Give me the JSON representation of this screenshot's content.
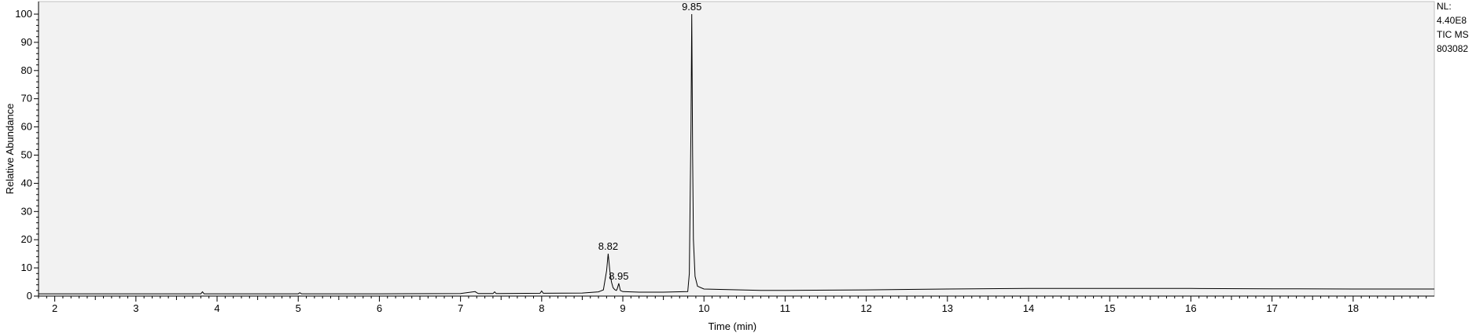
{
  "chart_data": {
    "type": "line",
    "xlabel": "Time (min)",
    "ylabel": "Relative Abundance",
    "xlim": [
      1.8,
      19.0
    ],
    "ylim": [
      0,
      100
    ],
    "x_ticks": [
      2,
      3,
      4,
      5,
      6,
      7,
      8,
      9,
      10,
      11,
      12,
      13,
      14,
      15,
      16,
      17,
      18
    ],
    "y_ticks": [
      0,
      10,
      20,
      30,
      40,
      50,
      60,
      70,
      80,
      90,
      100
    ],
    "side_info": [
      "NL:",
      "4.40E8",
      "TIC  MS",
      "803082"
    ],
    "peak_labels": [
      {
        "x": 8.82,
        "y": 15,
        "text": "8.82"
      },
      {
        "x": 8.95,
        "y": 4.5,
        "text": "8.95"
      },
      {
        "x": 9.85,
        "y": 100,
        "text": "9.85"
      }
    ],
    "series": [
      {
        "x": [
          1.8,
          3.0,
          3.8,
          3.82,
          3.84,
          5.0,
          5.02,
          5.04,
          6.0,
          7.0,
          7.18,
          7.2,
          7.22,
          7.4,
          7.42,
          7.44,
          7.98,
          8.0,
          8.02,
          8.5,
          8.7,
          8.76,
          8.8,
          8.82,
          8.84,
          8.86,
          8.88,
          8.9,
          8.92,
          8.93,
          8.95,
          8.97,
          9.0,
          9.2,
          9.5,
          9.8,
          9.82,
          9.84,
          9.85,
          9.86,
          9.87,
          9.89,
          9.92,
          10.0,
          10.3,
          10.7,
          11.0,
          12.0,
          13.0,
          14.0,
          15.0,
          16.0,
          17.0,
          18.0,
          19.0
        ],
        "values": [
          0.8,
          0.8,
          0.8,
          1.5,
          0.8,
          0.8,
          1.2,
          0.8,
          0.8,
          0.9,
          1.6,
          1.2,
          0.9,
          0.9,
          1.5,
          0.9,
          1.0,
          1.8,
          1.0,
          1.1,
          1.5,
          2.2,
          9.0,
          15.0,
          9.0,
          5.0,
          3.0,
          2.3,
          2.0,
          2.5,
          4.5,
          2.0,
          1.6,
          1.4,
          1.4,
          1.6,
          8.0,
          60.0,
          100.0,
          50.0,
          20.0,
          7.0,
          3.5,
          2.5,
          2.3,
          2.0,
          2.0,
          2.2,
          2.5,
          2.7,
          2.7,
          2.7,
          2.6,
          2.5,
          2.5
        ]
      }
    ]
  },
  "colors": {
    "trace": "#000000",
    "plot_bg": "#f2f2f2",
    "axis": "#000000"
  }
}
